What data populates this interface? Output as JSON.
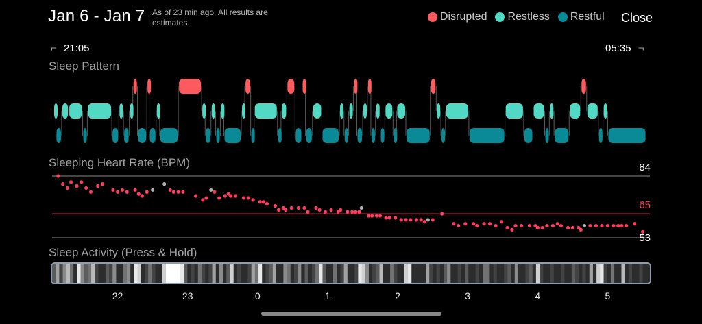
{
  "header": {
    "date_range": "Jan 6 - Jan 7",
    "note": "As of 23 min ago. All results are estimates.",
    "close_label": "Close"
  },
  "legend": [
    {
      "label": "Disrupted",
      "color": "#ff5a5f"
    },
    {
      "label": "Restless",
      "color": "#52d9c4"
    },
    {
      "label": "Restful",
      "color": "#0a8a96"
    }
  ],
  "time_range": {
    "start": "21:05",
    "end": "05:35"
  },
  "sleep_pattern": {
    "title": "Sleep Pattern",
    "colors": {
      "disrupted": "#ff5a5f",
      "restless": "#52d9c4",
      "restful": "#0a8a96"
    },
    "segments": [
      {
        "stage": "restless",
        "start": "21:05",
        "end": "21:07"
      },
      {
        "stage": "restful",
        "start": "21:07",
        "end": "21:12"
      },
      {
        "stage": "restless",
        "start": "21:12",
        "end": "21:18"
      },
      {
        "stage": "restless",
        "start": "21:18",
        "end": "21:30"
      },
      {
        "stage": "restful",
        "start": "21:30",
        "end": "21:34"
      },
      {
        "stage": "restless",
        "start": "21:34",
        "end": "21:55"
      },
      {
        "stage": "restful",
        "start": "21:55",
        "end": "22:01"
      },
      {
        "stage": "restless",
        "start": "22:01",
        "end": "22:05"
      },
      {
        "stage": "restful",
        "start": "22:05",
        "end": "22:10"
      },
      {
        "stage": "restless",
        "start": "22:10",
        "end": "22:13"
      },
      {
        "stage": "disrupted",
        "start": "22:13",
        "end": "22:17"
      },
      {
        "stage": "restful",
        "start": "22:17",
        "end": "22:25"
      },
      {
        "stage": "disrupted",
        "start": "22:25",
        "end": "22:27"
      },
      {
        "stage": "restful",
        "start": "22:27",
        "end": "22:33"
      },
      {
        "stage": "restless",
        "start": "22:33",
        "end": "22:36"
      },
      {
        "stage": "restful",
        "start": "22:36",
        "end": "22:52"
      },
      {
        "stage": "disrupted",
        "start": "22:52",
        "end": "23:12"
      },
      {
        "stage": "restless",
        "start": "23:12",
        "end": "23:15"
      },
      {
        "stage": "restful",
        "start": "23:15",
        "end": "23:20"
      },
      {
        "stage": "restless",
        "start": "23:20",
        "end": "23:24"
      },
      {
        "stage": "restful",
        "start": "23:24",
        "end": "23:28"
      },
      {
        "stage": "restless",
        "start": "23:28",
        "end": "23:31"
      },
      {
        "stage": "restful",
        "start": "23:31",
        "end": "23:46"
      },
      {
        "stage": "restless",
        "start": "23:46",
        "end": "23:49"
      },
      {
        "stage": "disrupted",
        "start": "23:49",
        "end": "23:54"
      },
      {
        "stage": "restful",
        "start": "23:54",
        "end": "23:57"
      },
      {
        "stage": "restless",
        "start": "23:57",
        "end": "00:17"
      },
      {
        "stage": "restful",
        "start": "00:17",
        "end": "00:20"
      },
      {
        "stage": "restless",
        "start": "00:20",
        "end": "00:25"
      },
      {
        "stage": "disrupted",
        "start": "00:25",
        "end": "00:32"
      },
      {
        "stage": "restful",
        "start": "00:32",
        "end": "00:38"
      },
      {
        "stage": "disrupted",
        "start": "00:38",
        "end": "00:41"
      },
      {
        "stage": "restful",
        "start": "00:41",
        "end": "00:47"
      },
      {
        "stage": "restless",
        "start": "00:47",
        "end": "00:55"
      },
      {
        "stage": "restful",
        "start": "00:55",
        "end": "01:10"
      },
      {
        "stage": "restless",
        "start": "01:10",
        "end": "01:14"
      },
      {
        "stage": "restful",
        "start": "01:14",
        "end": "01:18"
      },
      {
        "stage": "restless",
        "start": "01:18",
        "end": "01:22"
      },
      {
        "stage": "disrupted",
        "start": "01:22",
        "end": "01:25"
      },
      {
        "stage": "restful",
        "start": "01:25",
        "end": "01:30"
      },
      {
        "stage": "restless",
        "start": "01:30",
        "end": "01:34"
      },
      {
        "stage": "disrupted",
        "start": "01:34",
        "end": "01:37"
      },
      {
        "stage": "restful",
        "start": "01:37",
        "end": "01:41"
      },
      {
        "stage": "restless",
        "start": "01:41",
        "end": "01:45"
      },
      {
        "stage": "restful",
        "start": "01:45",
        "end": "01:49"
      },
      {
        "stage": "restless",
        "start": "01:49",
        "end": "01:56"
      },
      {
        "stage": "restful",
        "start": "01:56",
        "end": "01:59"
      },
      {
        "stage": "restless",
        "start": "01:59",
        "end": "02:07"
      },
      {
        "stage": "restful",
        "start": "02:07",
        "end": "02:28"
      },
      {
        "stage": "disrupted",
        "start": "02:28",
        "end": "02:33"
      },
      {
        "stage": "restless",
        "start": "02:33",
        "end": "02:37"
      },
      {
        "stage": "restful",
        "start": "02:37",
        "end": "02:41"
      },
      {
        "stage": "restless",
        "start": "02:41",
        "end": "03:01"
      },
      {
        "stage": "restful",
        "start": "03:01",
        "end": "03:32"
      },
      {
        "stage": "restless",
        "start": "03:32",
        "end": "03:48"
      },
      {
        "stage": "restful",
        "start": "03:48",
        "end": "03:56"
      },
      {
        "stage": "restless",
        "start": "03:56",
        "end": "04:06"
      },
      {
        "stage": "restful",
        "start": "04:06",
        "end": "04:10"
      },
      {
        "stage": "restless",
        "start": "04:10",
        "end": "04:14"
      },
      {
        "stage": "restful",
        "start": "04:14",
        "end": "04:27"
      },
      {
        "stage": "restless",
        "start": "04:27",
        "end": "04:37"
      },
      {
        "stage": "disrupted",
        "start": "04:37",
        "end": "04:42"
      },
      {
        "stage": "restless",
        "start": "04:42",
        "end": "04:52"
      },
      {
        "stage": "restful",
        "start": "04:52",
        "end": "04:56"
      },
      {
        "stage": "restless",
        "start": "04:56",
        "end": "05:00"
      },
      {
        "stage": "restful",
        "start": "05:00",
        "end": "05:33"
      }
    ]
  },
  "heart_rate": {
    "title": "Sleeping Heart Rate (BPM)",
    "max_label": "84",
    "avg_label": "65",
    "min_label": "53",
    "max_value": 84,
    "avg_value": 65,
    "min_value": 53,
    "point_color": "#ff3d61",
    "gap_color": "#b0b0b0",
    "avg_line_color": "#ff3d61",
    "points": [
      {
        "t": "21:09",
        "bpm": 84,
        "gap": false
      },
      {
        "t": "21:13",
        "bpm": 80,
        "gap": false
      },
      {
        "t": "21:17",
        "bpm": 78,
        "gap": false
      },
      {
        "t": "21:20",
        "bpm": 81,
        "gap": false
      },
      {
        "t": "21:25",
        "bpm": 79,
        "gap": false
      },
      {
        "t": "21:29",
        "bpm": 81,
        "gap": false
      },
      {
        "t": "21:33",
        "bpm": 78,
        "gap": false
      },
      {
        "t": "21:37",
        "bpm": 76,
        "gap": false
      },
      {
        "t": "21:43",
        "bpm": 79,
        "gap": false
      },
      {
        "t": "21:47",
        "bpm": 80,
        "gap": false
      },
      {
        "t": "21:56",
        "bpm": 77,
        "gap": false
      },
      {
        "t": "22:00",
        "bpm": 76,
        "gap": false
      },
      {
        "t": "22:04",
        "bpm": 77,
        "gap": false
      },
      {
        "t": "22:08",
        "bpm": 76,
        "gap": false
      },
      {
        "t": "22:15",
        "bpm": 77,
        "gap": false
      },
      {
        "t": "22:18",
        "bpm": 75,
        "gap": false
      },
      {
        "t": "22:21",
        "bpm": 74,
        "gap": false
      },
      {
        "t": "22:25",
        "bpm": 76,
        "gap": false
      },
      {
        "t": "22:30",
        "bpm": 77,
        "gap": true
      },
      {
        "t": "22:40",
        "bpm": 80,
        "gap": true
      },
      {
        "t": "22:45",
        "bpm": 77,
        "gap": false
      },
      {
        "t": "22:48",
        "bpm": 76,
        "gap": false
      },
      {
        "t": "22:52",
        "bpm": 76,
        "gap": false
      },
      {
        "t": "22:56",
        "bpm": 76,
        "gap": false
      },
      {
        "t": "23:07",
        "bpm": 74,
        "gap": false
      },
      {
        "t": "23:13",
        "bpm": 72,
        "gap": false
      },
      {
        "t": "23:16",
        "bpm": 73,
        "gap": false
      },
      {
        "t": "23:20",
        "bpm": 77,
        "gap": true
      },
      {
        "t": "23:23",
        "bpm": 76,
        "gap": false
      },
      {
        "t": "23:27",
        "bpm": 73,
        "gap": false
      },
      {
        "t": "23:32",
        "bpm": 74,
        "gap": false
      },
      {
        "t": "23:35",
        "bpm": 75,
        "gap": false
      },
      {
        "t": "23:37",
        "bpm": 74,
        "gap": false
      },
      {
        "t": "23:41",
        "bpm": 74,
        "gap": false
      },
      {
        "t": "23:48",
        "bpm": 73,
        "gap": false
      },
      {
        "t": "23:52",
        "bpm": 73,
        "gap": false
      },
      {
        "t": "23:56",
        "bpm": 72,
        "gap": false
      },
      {
        "t": "00:02",
        "bpm": 71,
        "gap": false
      },
      {
        "t": "00:05",
        "bpm": 71,
        "gap": false
      },
      {
        "t": "00:08",
        "bpm": 70,
        "gap": false
      },
      {
        "t": "00:15",
        "bpm": 69,
        "gap": false
      },
      {
        "t": "00:18",
        "bpm": 67,
        "gap": false
      },
      {
        "t": "00:22",
        "bpm": 68,
        "gap": false
      },
      {
        "t": "00:24",
        "bpm": 67,
        "gap": false
      },
      {
        "t": "00:29",
        "bpm": 68,
        "gap": false
      },
      {
        "t": "00:35",
        "bpm": 68,
        "gap": false
      },
      {
        "t": "00:40",
        "bpm": 68,
        "gap": false
      },
      {
        "t": "00:43",
        "bpm": 66,
        "gap": false
      },
      {
        "t": "00:50",
        "bpm": 68,
        "gap": false
      },
      {
        "t": "00:53",
        "bpm": 67,
        "gap": false
      },
      {
        "t": "00:58",
        "bpm": 66,
        "gap": false
      },
      {
        "t": "01:03",
        "bpm": 67,
        "gap": false
      },
      {
        "t": "01:09",
        "bpm": 66,
        "gap": false
      },
      {
        "t": "01:11",
        "bpm": 67,
        "gap": false
      },
      {
        "t": "01:17",
        "bpm": 66,
        "gap": false
      },
      {
        "t": "01:21",
        "bpm": 66,
        "gap": false
      },
      {
        "t": "01:24",
        "bpm": 66,
        "gap": false
      },
      {
        "t": "01:27",
        "bpm": 66,
        "gap": false
      },
      {
        "t": "01:29",
        "bpm": 68,
        "gap": true
      },
      {
        "t": "01:35",
        "bpm": 64,
        "gap": false
      },
      {
        "t": "01:38",
        "bpm": 64,
        "gap": false
      },
      {
        "t": "01:42",
        "bpm": 64,
        "gap": false
      },
      {
        "t": "01:45",
        "bpm": 64,
        "gap": false
      },
      {
        "t": "01:50",
        "bpm": 63,
        "gap": false
      },
      {
        "t": "01:53",
        "bpm": 63,
        "gap": false
      },
      {
        "t": "01:58",
        "bpm": 63,
        "gap": false
      },
      {
        "t": "02:03",
        "bpm": 62,
        "gap": false
      },
      {
        "t": "02:07",
        "bpm": 62,
        "gap": false
      },
      {
        "t": "02:11",
        "bpm": 62,
        "gap": false
      },
      {
        "t": "02:16",
        "bpm": 62,
        "gap": false
      },
      {
        "t": "02:20",
        "bpm": 62,
        "gap": false
      },
      {
        "t": "02:23",
        "bpm": 61,
        "gap": false
      },
      {
        "t": "02:26",
        "bpm": 62,
        "gap": true
      },
      {
        "t": "02:30",
        "bpm": 62,
        "gap": false
      },
      {
        "t": "02:38",
        "bpm": 65,
        "gap": false
      },
      {
        "t": "02:48",
        "bpm": 60,
        "gap": false
      },
      {
        "t": "02:52",
        "bpm": 59,
        "gap": false
      },
      {
        "t": "02:58",
        "bpm": 60,
        "gap": false
      },
      {
        "t": "03:05",
        "bpm": 60,
        "gap": false
      },
      {
        "t": "03:08",
        "bpm": 59,
        "gap": false
      },
      {
        "t": "03:14",
        "bpm": 60,
        "gap": false
      },
      {
        "t": "03:19",
        "bpm": 60,
        "gap": false
      },
      {
        "t": "03:24",
        "bpm": 59,
        "gap": false
      },
      {
        "t": "03:29",
        "bpm": 61,
        "gap": false
      },
      {
        "t": "03:34",
        "bpm": 58,
        "gap": false
      },
      {
        "t": "03:38",
        "bpm": 57,
        "gap": false
      },
      {
        "t": "03:41",
        "bpm": 59,
        "gap": false
      },
      {
        "t": "03:46",
        "bpm": 59,
        "gap": false
      },
      {
        "t": "03:53",
        "bpm": 59,
        "gap": false
      },
      {
        "t": "03:58",
        "bpm": 59,
        "gap": false
      },
      {
        "t": "04:00",
        "bpm": 58,
        "gap": false
      },
      {
        "t": "04:04",
        "bpm": 58,
        "gap": false
      },
      {
        "t": "04:08",
        "bpm": 59,
        "gap": false
      },
      {
        "t": "04:13",
        "bpm": 59,
        "gap": false
      },
      {
        "t": "04:17",
        "bpm": 60,
        "gap": false
      },
      {
        "t": "04:20",
        "bpm": 59,
        "gap": false
      },
      {
        "t": "04:26",
        "bpm": 58,
        "gap": false
      },
      {
        "t": "04:30",
        "bpm": 58,
        "gap": false
      },
      {
        "t": "04:35",
        "bpm": 58,
        "gap": false
      },
      {
        "t": "04:37",
        "bpm": 57,
        "gap": false
      },
      {
        "t": "04:40",
        "bpm": 59,
        "gap": true
      },
      {
        "t": "04:45",
        "bpm": 59,
        "gap": false
      },
      {
        "t": "04:50",
        "bpm": 59,
        "gap": false
      },
      {
        "t": "04:55",
        "bpm": 59,
        "gap": false
      },
      {
        "t": "05:00",
        "bpm": 59,
        "gap": false
      },
      {
        "t": "05:05",
        "bpm": 59,
        "gap": false
      },
      {
        "t": "05:09",
        "bpm": 59,
        "gap": false
      },
      {
        "t": "05:12",
        "bpm": 59,
        "gap": false
      },
      {
        "t": "05:16",
        "bpm": 59,
        "gap": false
      },
      {
        "t": "05:23",
        "bpm": 60,
        "gap": false
      },
      {
        "t": "05:30",
        "bpm": 56,
        "gap": false
      }
    ]
  },
  "activity": {
    "title": "Sleep Activity (Press & Hold)",
    "hour_labels": [
      "22",
      "23",
      "0",
      "1",
      "2",
      "3",
      "4",
      "5"
    ],
    "hour_times": [
      "22:00",
      "23:00",
      "00:00",
      "01:00",
      "02:00",
      "03:00",
      "04:00",
      "05:00"
    ],
    "levels": [
      0.3,
      0.6,
      0.2,
      0.5,
      0.7,
      0.4,
      0.1,
      0.9,
      0.5,
      0.3,
      0.4,
      0.7,
      0.2,
      0.1,
      0.1,
      0.3,
      0.2,
      0.5,
      0.1,
      0.1,
      0.4,
      0.5,
      0.1,
      0.9,
      0.8,
      0.1,
      0.2,
      0.4,
      0.2,
      0.1,
      0.1,
      0.8,
      1.0,
      1.0,
      1.0,
      1.0,
      0.9,
      0.3,
      0.1,
      0.2,
      0.1,
      0.4,
      0.2,
      0.1,
      0.2,
      0.6,
      0.1,
      0.5,
      0.1,
      0.3,
      0.8,
      0.1,
      0.2,
      0.1,
      0.1,
      0.2,
      0.6,
      0.4,
      0.9,
      0.1,
      0.2,
      0.3,
      0.6,
      0.1,
      0.1,
      0.5,
      0.4,
      0.1,
      0.2,
      0.5,
      0.1,
      0.3,
      0.1,
      0.2,
      0.4,
      0.9,
      0.3,
      0.1,
      0.1,
      0.4,
      0.1,
      0.2,
      0.6,
      0.1,
      0.1,
      0.2,
      0.9,
      0.8,
      0.5,
      0.1,
      0.2,
      0.3,
      0.7,
      0.1,
      0.1,
      0.4,
      0.2,
      0.1,
      0.1,
      0.8,
      0.9,
      0.1,
      0.1,
      0.1,
      0.1,
      0.6,
      0.2,
      0.1,
      0.2,
      0.1,
      0.3,
      0.5,
      0.1,
      0.1,
      0.2,
      0.1,
      0.3,
      0.1,
      0.1,
      0.2,
      0.1,
      0.4,
      0.4,
      0.1,
      0.2,
      0.1,
      0.1,
      0.2,
      0.3,
      0.1,
      0.5,
      0.1,
      0.1,
      0.2,
      0.3,
      0.1,
      0.8,
      0.2,
      0.1,
      0.1,
      0.2,
      0.1,
      0.1,
      0.2,
      0.1,
      0.1,
      0.3,
      0.2,
      0.1,
      0.2,
      0.1,
      0.6,
      0.1,
      0.8,
      0.9,
      0.2,
      0.1,
      0.4,
      0.1,
      0.1,
      0.7,
      0.1,
      0.2,
      0.1,
      0.1,
      0.2,
      0.1,
      0.1
    ]
  },
  "icons": {
    "bracket_start": "corner-bracket-left-icon",
    "bracket_end": "corner-bracket-right-icon"
  }
}
